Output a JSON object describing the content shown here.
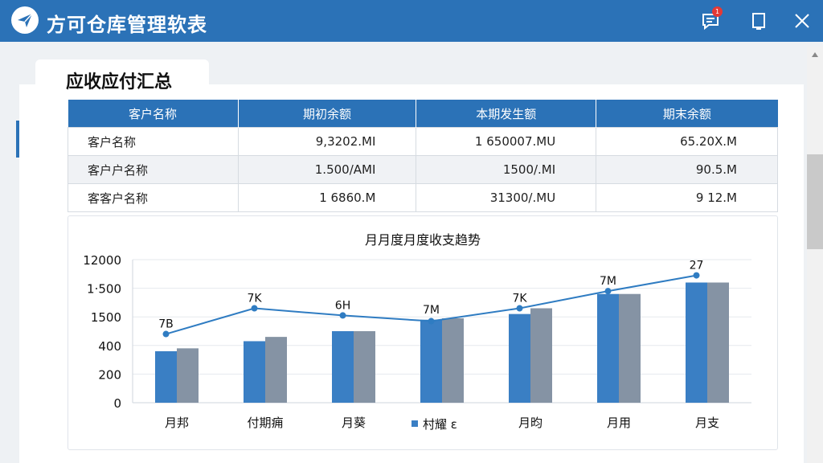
{
  "app": {
    "title": "方可仓库管理软表",
    "notification_badge": "1"
  },
  "panel": {
    "title": "应收应付汇总"
  },
  "table": {
    "columns": [
      "客户名称",
      "期初余额",
      "本期发生额",
      "期末余额"
    ],
    "rows": [
      {
        "name": "客户名称",
        "opening": "9,3202.MI",
        "current": "1 650007.MU",
        "closing": "65.20X.M"
      },
      {
        "name": "客户户名称",
        "opening": "1.500/AMI",
        "current": "1500/.MI",
        "closing": "90.5.M"
      },
      {
        "name": "客客户名称",
        "opening": "1 6860.M",
        "current": "31300/.MU",
        "closing": "9 12.M"
      }
    ]
  },
  "chart_data": {
    "type": "bar",
    "title": "月月度月度收支趋势",
    "categories": [
      "月邦",
      "付期痈",
      "月葵",
      "",
      "月昀",
      "月用",
      "月支"
    ],
    "legend_label": "村耀 ε",
    "y_ticks": [
      "12000",
      "1·500",
      "1500",
      "400",
      "200",
      "0"
    ],
    "series": [
      {
        "values": [
          1.8,
          2.15,
          2.5,
          2.9,
          3.1,
          3.8,
          4.2
        ]
      },
      {
        "values": [
          1.9,
          2.3,
          2.5,
          2.95,
          3.3,
          3.8,
          4.2
        ]
      }
    ],
    "line": {
      "values": [
        2.4,
        3.3,
        3.05,
        2.85,
        3.3,
        3.9,
        4.45
      ]
    },
    "data_labels": [
      "7B",
      "7K",
      "6H",
      "7M",
      "7K",
      "7M",
      "27"
    ],
    "colors": {
      "series_blue": "#3a7fc4",
      "series_gray": "#8593a4",
      "line": "#2f7cc2",
      "grid": "#e6e9ee"
    }
  }
}
